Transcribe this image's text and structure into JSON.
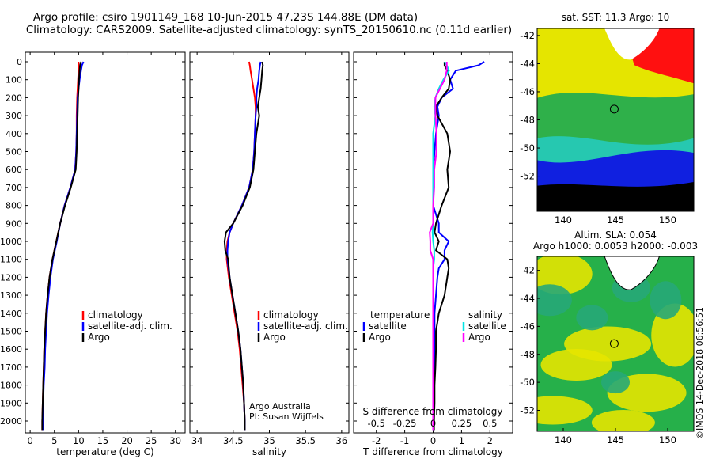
{
  "header": {
    "title_line1": "Argo profile: csiro 1901149_168 10-Jun-2015 47.23S 144.88E (DM data)",
    "title_line2": "Climatology: CARS2009. Satellite-adjusted climatology: synTS_20150610.nc (0.11d earlier)"
  },
  "colors": {
    "climatology": "#ff0000",
    "satellite_adj": "#0000ff",
    "argo": "#000000",
    "s_satellite": "#00e5e5",
    "s_argo": "#ff00ff"
  },
  "footer": {
    "watermark": "©IMOS 14-Dec-2018 06:56:51",
    "credit_line1": "Argo Australia",
    "credit_line2": "PI: Susan Wijffels"
  },
  "legend": {
    "climatology": "climatology",
    "satellite_adj": "satellite-adj. clim.",
    "argo": "Argo",
    "temperature": "temperature",
    "salinity": "salinity",
    "satellite": "satellite"
  },
  "chart_data": [
    {
      "type": "line",
      "xlabel": "temperature (deg C)",
      "ylabel": "",
      "xlim": [
        -1,
        32
      ],
      "ylim": [
        2050,
        0
      ],
      "xticks": [
        0,
        5,
        10,
        15,
        20,
        25,
        30
      ],
      "yticks": [
        0,
        100,
        200,
        300,
        400,
        500,
        600,
        700,
        800,
        900,
        1000,
        1100,
        1200,
        1300,
        1400,
        1500,
        1600,
        1700,
        1800,
        1900,
        2000
      ],
      "ytick_labels": [
        "0",
        "100",
        "200",
        "300",
        "400",
        "500",
        "600",
        "700",
        "800",
        "900",
        "1000",
        "1100",
        "1200",
        "1300",
        "1400",
        "1500",
        "1600",
        "1700",
        "1800",
        "1900",
        "2000"
      ],
      "y": [
        0,
        20,
        50,
        100,
        150,
        200,
        300,
        400,
        500,
        600,
        700,
        800,
        900,
        1000,
        1100,
        1200,
        1300,
        1400,
        1500,
        1600,
        1700,
        1800,
        1900,
        2000,
        2050
      ],
      "series": [
        {
          "name": "climatology",
          "color": "#ff0000",
          "x": [
            10.0,
            10.0,
            10.0,
            9.9,
            9.8,
            9.7,
            9.6,
            9.6,
            9.5,
            9.3,
            8.3,
            7.1,
            6.2,
            5.4,
            4.6,
            4.0,
            3.6,
            3.3,
            3.1,
            2.9,
            2.8,
            2.7,
            2.6,
            2.5,
            2.5
          ]
        },
        {
          "name": "satellite-adj. clim.",
          "color": "#0000ff",
          "x": [
            11.0,
            10.7,
            10.5,
            10.2,
            10.0,
            9.8,
            9.7,
            9.6,
            9.5,
            9.3,
            8.3,
            7.1,
            6.2,
            5.5,
            4.7,
            4.2,
            3.8,
            3.5,
            3.3,
            3.1,
            3.0,
            2.8,
            2.7,
            2.6,
            2.6
          ]
        },
        {
          "name": "Argo",
          "color": "#000000",
          "x": [
            10.5,
            10.3,
            10.2,
            10.1,
            10.0,
            9.9,
            9.8,
            9.7,
            9.6,
            9.4,
            8.4,
            7.2,
            6.2,
            5.4,
            4.6,
            4.0,
            3.6,
            3.3,
            3.1,
            2.9,
            2.8,
            2.7,
            2.6,
            2.5,
            2.5
          ]
        }
      ]
    },
    {
      "type": "line",
      "xlabel": "salinity",
      "ylabel": "",
      "xlim": [
        33.9,
        36.1
      ],
      "ylim": [
        2050,
        0
      ],
      "xticks": [
        34,
        34.5,
        35,
        35.5,
        36
      ],
      "credit": "Argo Australia / PI: Susan Wijffels",
      "y": [
        0,
        20,
        50,
        100,
        150,
        200,
        250,
        300,
        400,
        500,
        600,
        700,
        800,
        900,
        950,
        1000,
        1050,
        1100,
        1200,
        1300,
        1400,
        1500,
        1600,
        1700,
        1800,
        1900,
        2000,
        2050
      ],
      "series": [
        {
          "name": "climatology",
          "color": "#ff0000",
          "x": [
            34.72,
            34.73,
            34.74,
            34.76,
            34.78,
            34.8,
            34.81,
            34.81,
            34.8,
            34.79,
            34.77,
            34.72,
            34.62,
            34.5,
            34.45,
            34.42,
            34.41,
            34.41,
            34.44,
            34.48,
            34.52,
            34.56,
            34.59,
            34.61,
            34.63,
            34.65,
            34.66,
            34.66
          ]
        },
        {
          "name": "satellite-adj. clim.",
          "color": "#0000ff",
          "x": [
            34.88,
            34.87,
            34.86,
            34.85,
            34.83,
            34.82,
            34.82,
            34.81,
            34.8,
            34.79,
            34.77,
            34.72,
            34.62,
            34.5,
            34.45,
            34.43,
            34.42,
            34.42,
            34.45,
            34.49,
            34.53,
            34.57,
            34.6,
            34.62,
            34.64,
            34.65,
            34.66,
            34.66
          ]
        },
        {
          "name": "Argo",
          "color": "#000000",
          "x": [
            34.9,
            34.91,
            34.9,
            34.89,
            34.88,
            34.86,
            34.84,
            34.86,
            34.82,
            34.8,
            34.78,
            34.73,
            34.63,
            34.5,
            34.4,
            34.38,
            34.39,
            34.43,
            34.45,
            34.49,
            34.53,
            34.57,
            34.6,
            34.62,
            34.64,
            34.65,
            34.66,
            34.66
          ]
        }
      ]
    },
    {
      "type": "line",
      "xlabel": "T difference from climatology",
      "xlabel_top": "S difference from climatology",
      "ylabel": "",
      "xlim": [
        -2.8,
        2.8
      ],
      "xlim_top": [
        -0.7,
        0.7
      ],
      "ylim": [
        2050,
        0
      ],
      "xticks": [
        -2,
        -1,
        0,
        1,
        2
      ],
      "xticks_top": [
        "-0.5",
        "-0.25",
        "0",
        "0.25",
        "0.5"
      ],
      "y": [
        0,
        20,
        50,
        100,
        150,
        200,
        250,
        300,
        400,
        500,
        600,
        700,
        800,
        900,
        950,
        1000,
        1050,
        1100,
        1150,
        1200,
        1300,
        1400,
        1500,
        1600,
        1700,
        1800,
        1900,
        2000,
        2050
      ],
      "series": [
        {
          "name": "temperature satellite",
          "axis": "T",
          "color": "#0000ff",
          "x": [
            1.8,
            1.6,
            0.8,
            0.6,
            0.7,
            0.3,
            0.15,
            0.2,
            0.1,
            0.05,
            0.0,
            0.0,
            0.0,
            0.2,
            0.2,
            0.55,
            0.4,
            0.4,
            0.2,
            0.15,
            0.1,
            0.05,
            0.05,
            0.05,
            0.04,
            0.03,
            0.02,
            0.02,
            0.02
          ]
        },
        {
          "name": "temperature Argo",
          "axis": "T",
          "color": "#000000",
          "x": [
            0.4,
            0.4,
            0.5,
            0.6,
            0.55,
            0.3,
            0.1,
            0.15,
            0.5,
            0.6,
            0.5,
            0.55,
            0.3,
            0.1,
            0.05,
            0.2,
            0.1,
            0.5,
            0.55,
            0.5,
            0.4,
            0.2,
            0.1,
            0.1,
            0.08,
            0.05,
            0.05,
            0.03,
            0.03
          ]
        },
        {
          "name": "salinity satellite",
          "axis": "S",
          "color": "#00e5e5",
          "x": [
            0.1,
            0.12,
            0.14,
            0.09,
            0.05,
            0.02,
            0.01,
            0.02,
            0.0,
            0.0,
            0.0,
            0.0,
            0.0,
            0.0,
            -0.005,
            0.0,
            0.01,
            0.01,
            0.0,
            0.0,
            0.0,
            0.0,
            0.0,
            0.0,
            0.0,
            0.0,
            0.0,
            0.0,
            0.0
          ]
        },
        {
          "name": "salinity Argo",
          "axis": "S",
          "color": "#ff00ff",
          "x": [
            0.12,
            0.12,
            0.12,
            0.1,
            0.06,
            0.02,
            0.02,
            0.02,
            0.03,
            0.03,
            0.01,
            0.01,
            0.0,
            0.0,
            -0.03,
            -0.025,
            -0.025,
            0.0,
            0.0,
            0.0,
            0.0,
            0.0,
            0.0,
            0.0,
            0.0,
            0.0,
            0.0,
            0.0,
            0.0
          ]
        }
      ]
    },
    {
      "type": "heatmap",
      "title": "sat. SST: 11.3 Argo: 10",
      "xlim": [
        137.5,
        152.5
      ],
      "ylim": [
        -54.5,
        -41.5
      ],
      "xticks": [
        140,
        145,
        150
      ],
      "yticks": [
        -42,
        -44,
        -46,
        -48,
        -50,
        -52
      ],
      "marker": {
        "lon": 144.88,
        "lat": -47.23
      }
    },
    {
      "type": "heatmap",
      "title": "Altim. SLA: 0.054",
      "subtitle": "Argo h1000: 0.0053 h2000: -0.003",
      "xlim": [
        137.5,
        152.5
      ],
      "ylim": [
        -53.5,
        -41
      ],
      "xticks": [
        140,
        145,
        150
      ],
      "yticks": [
        -42,
        -44,
        -46,
        -48,
        -50,
        -52
      ],
      "marker": {
        "lon": 144.88,
        "lat": -47.23
      }
    }
  ]
}
